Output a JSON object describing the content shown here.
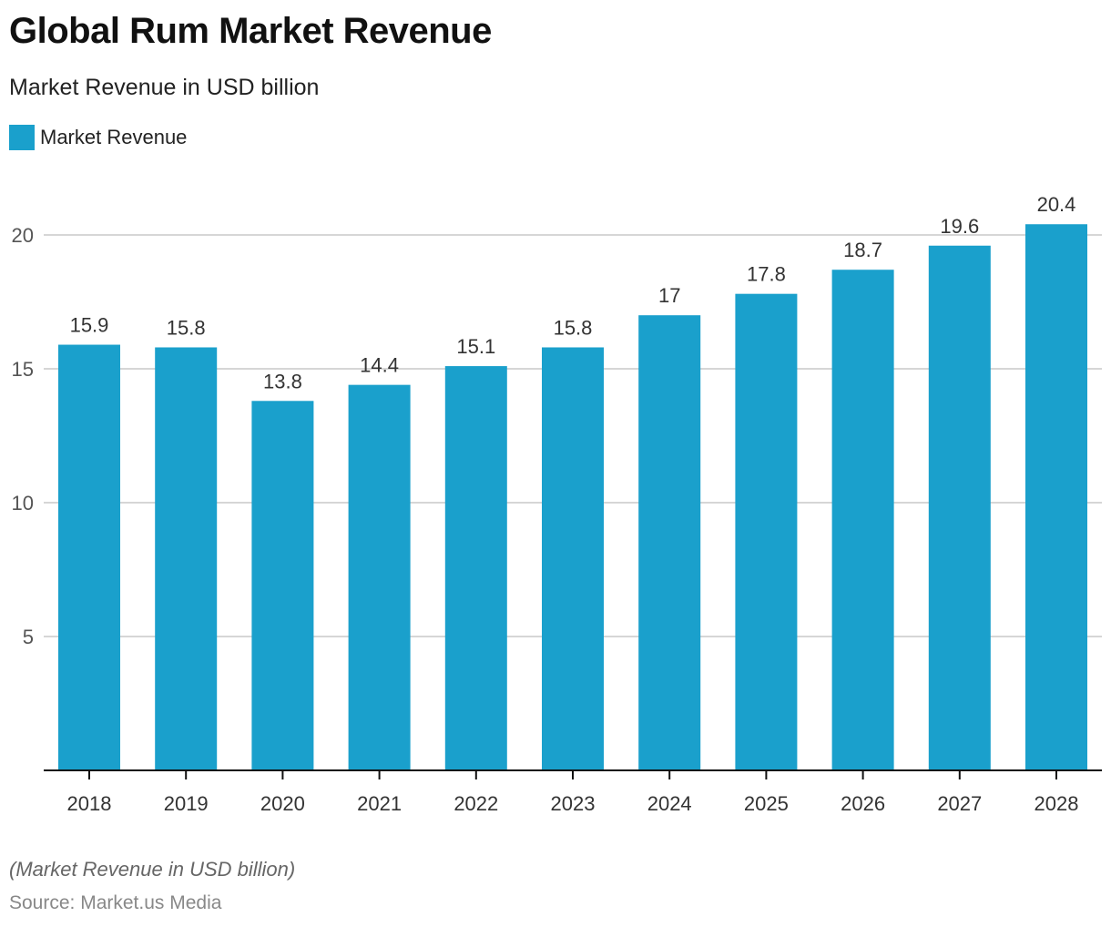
{
  "header": {
    "title": "Global Rum Market Revenue",
    "subtitle": "Market Revenue in USD billion"
  },
  "footer": {
    "note": "(Market Revenue in USD billion)",
    "source": "Source: Market.us Media"
  },
  "chart_data": {
    "type": "bar",
    "title": "Global Rum Market Revenue",
    "subtitle": "Market Revenue in USD billion",
    "xlabel": "",
    "ylabel": "",
    "categories": [
      "2018",
      "2019",
      "2020",
      "2021",
      "2022",
      "2023",
      "2024",
      "2025",
      "2026",
      "2027",
      "2028"
    ],
    "series": [
      {
        "name": "Market Revenue",
        "color": "#1aa0cc",
        "values": [
          15.9,
          15.8,
          13.8,
          14.4,
          15.1,
          15.8,
          17,
          17.8,
          18.7,
          19.6,
          20.4
        ],
        "labels": [
          "15.9",
          "15.8",
          "13.8",
          "14.4",
          "15.1",
          "15.8",
          "17",
          "17.8",
          "18.7",
          "19.6",
          "20.4"
        ]
      }
    ],
    "ylim": [
      0,
      20
    ],
    "yticks": [
      5,
      10,
      15,
      20
    ],
    "grid": true,
    "legend": "top-left"
  }
}
